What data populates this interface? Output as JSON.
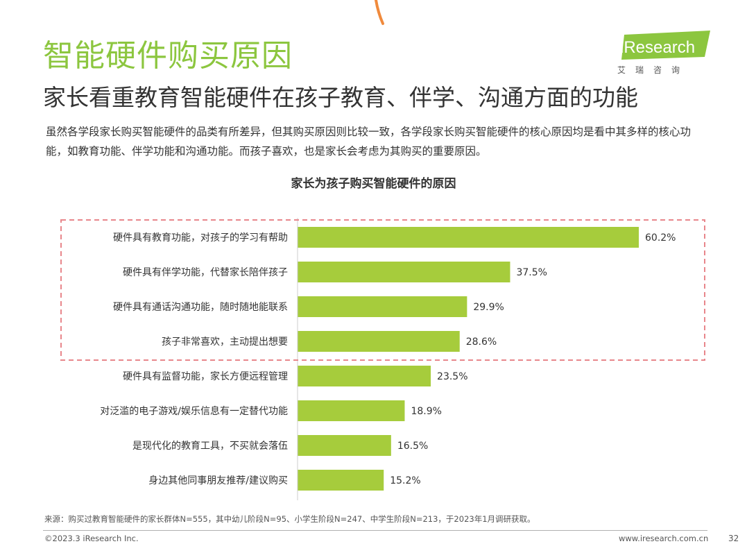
{
  "page": {
    "title": "智能硬件购买原因",
    "subtitle": "家长看重教育智能硬件在孩子教育、伴学、沟通方面的功能",
    "intro": "虽然各学段家长购买智能硬件的品类有所差异，但其购买原因则比较一致，各学段家长购买智能硬件的核心原因均是看中其多样的核心功能，如教育功能、伴学功能和沟通功能。而孩子喜欢，也是家长会考虑为其购买的重要原因。",
    "source": "来源：购买过教育智能硬件的家长群体N=555，其中幼儿阶段N=95、小学生阶段N=247、中学生阶段N=213，于2023年1月调研获取。",
    "copyright": "©2023.3 iResearch Inc.",
    "website": "www.iresearch.com.cn",
    "page_number": "32"
  },
  "logo": {
    "brand": "iResearch",
    "brand_cn": "艾瑞咨询"
  },
  "colors": {
    "accent": "#8cc63f",
    "bar": "#a6cc3c",
    "highlight_border": "#e8868b",
    "deco": "#f08a3c"
  },
  "chart_data": {
    "type": "bar",
    "orientation": "horizontal",
    "title": "家长为孩子购买智能硬件的原因",
    "categories": [
      "硬件具有教育功能，对孩子的学习有帮助",
      "硬件具有伴学功能，代替家长陪伴孩子",
      "硬件具有通话沟通功能，随时随地能联系",
      "孩子非常喜欢，主动提出想要",
      "硬件具有监督功能，家长方便远程管理",
      "对泛滥的电子游戏/娱乐信息有一定替代功能",
      "是现代化的教育工具，不买就会落伍",
      "身边其他同事朋友推荐/建议购买"
    ],
    "values": [
      60.2,
      37.5,
      29.9,
      28.6,
      23.5,
      18.9,
      16.5,
      15.2
    ],
    "value_labels": [
      "60.2%",
      "37.5%",
      "29.9%",
      "28.6%",
      "23.5%",
      "18.9%",
      "16.5%",
      "15.2%"
    ],
    "unit": "%",
    "xlim": [
      0,
      65
    ],
    "highlighted_top_n": 4,
    "grid": false,
    "legend": "none"
  }
}
